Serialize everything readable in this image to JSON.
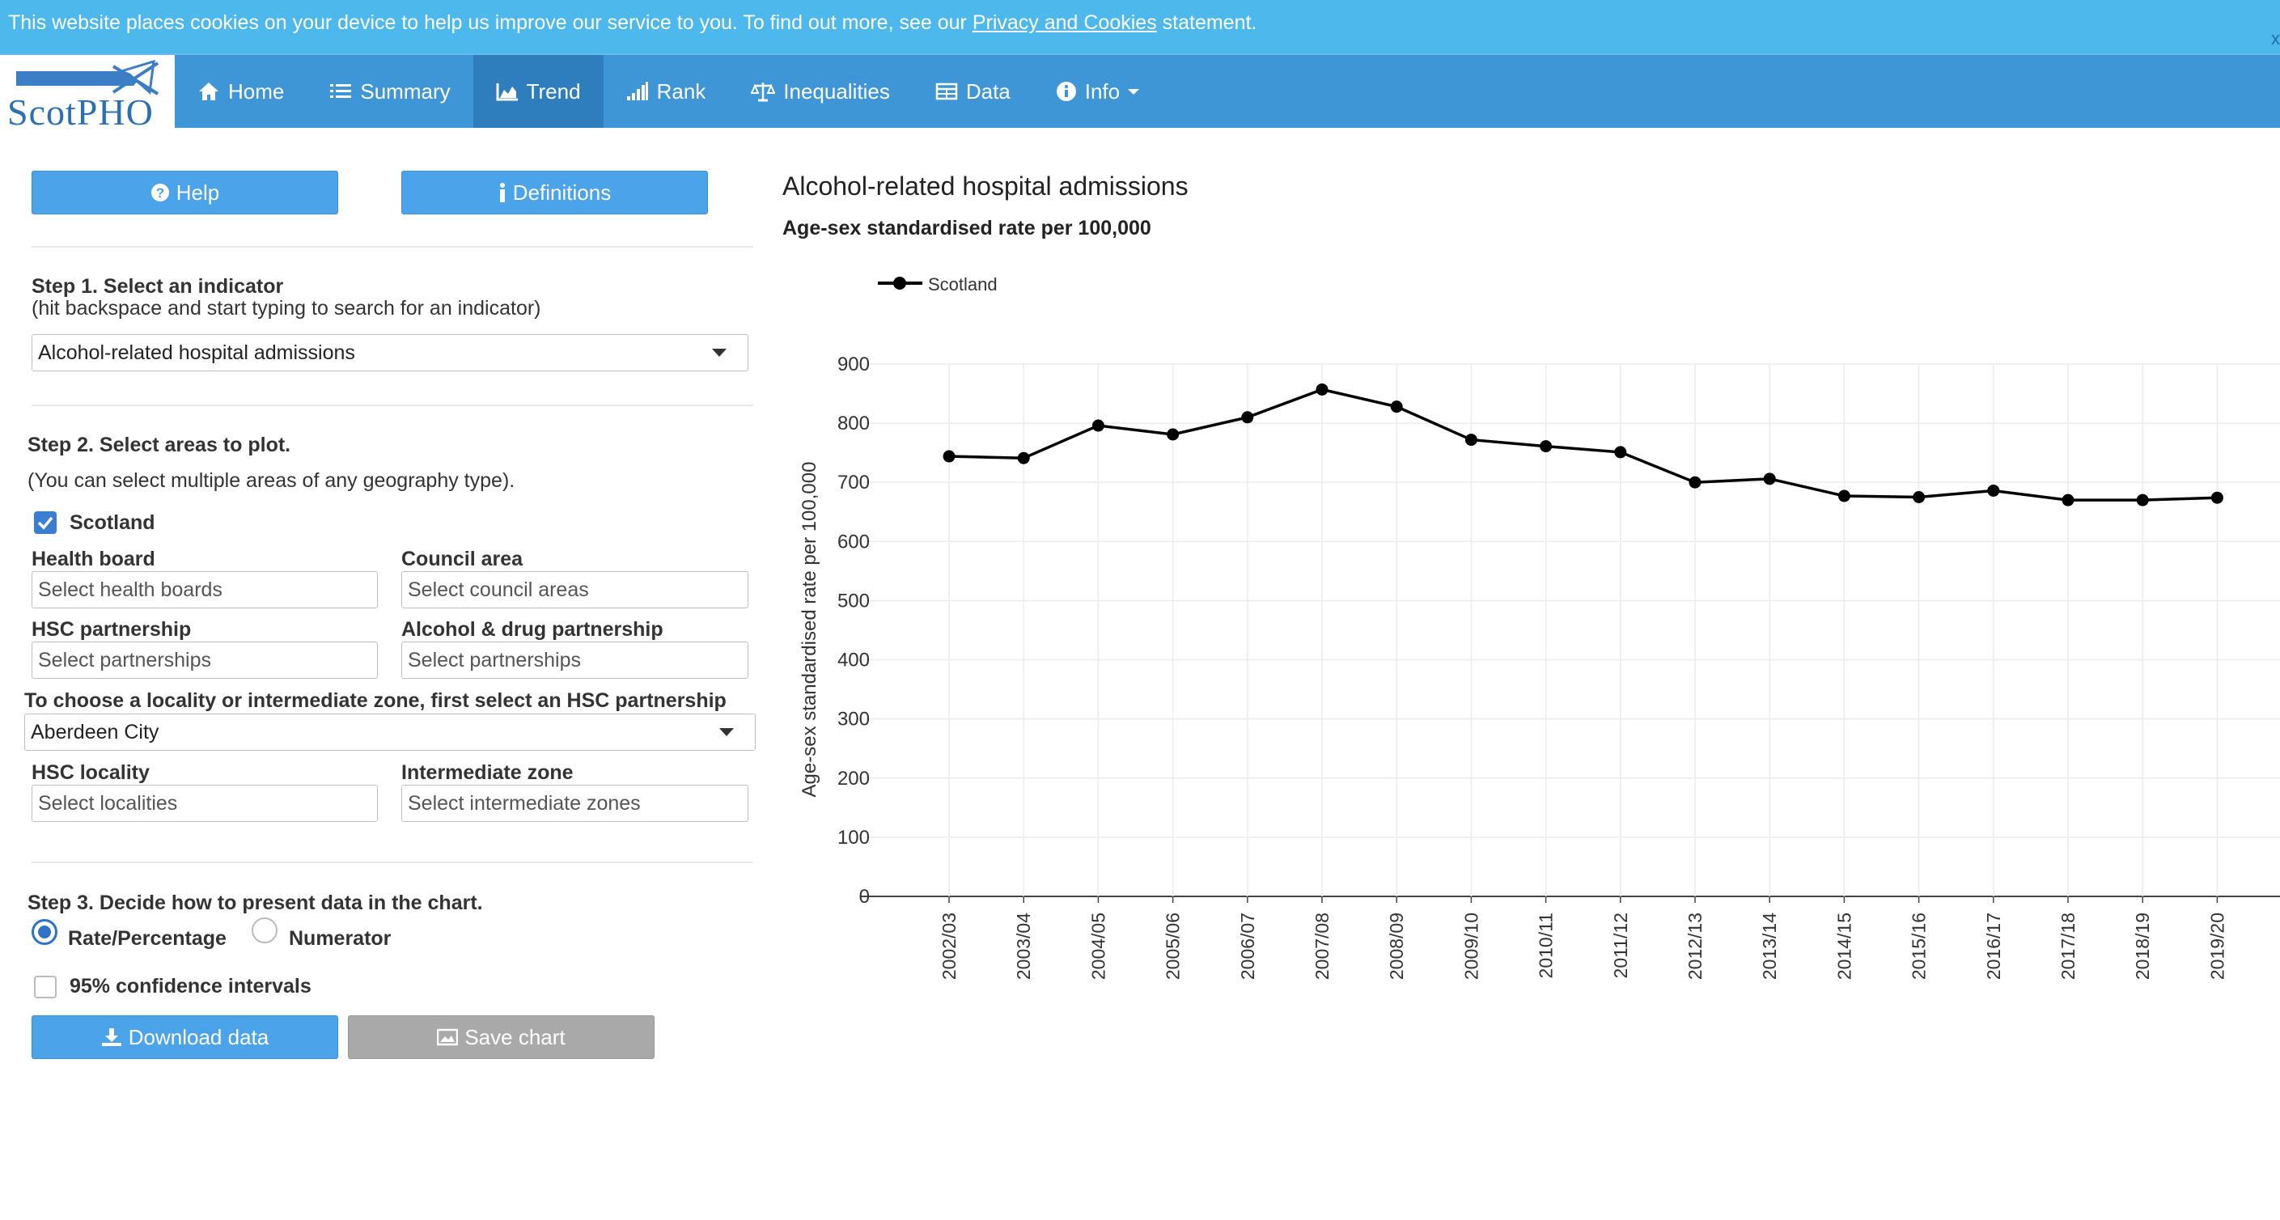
{
  "cookie": {
    "text_before": "This website places cookies on your device to help us improve our service to you. To find out more, see our ",
    "link": "Privacy and Cookies",
    "text_after": " statement.",
    "close": "x"
  },
  "navbar": {
    "logo": "ScotPHO",
    "items": [
      {
        "label": "Home",
        "icon": "home-icon"
      },
      {
        "label": "Summary",
        "icon": "list-icon"
      },
      {
        "label": "Trend",
        "icon": "area-chart-icon"
      },
      {
        "label": "Rank",
        "icon": "signal-icon"
      },
      {
        "label": "Inequalities",
        "icon": "balance-scale-icon"
      },
      {
        "label": "Data",
        "icon": "table-icon"
      },
      {
        "label": "Info",
        "icon": "info-circle-icon"
      }
    ],
    "active": "Trend"
  },
  "buttons": {
    "help": "Help",
    "definitions": "Definitions",
    "download": "Download data",
    "save": "Save chart"
  },
  "step1": {
    "title": "Step 1. Select an indicator",
    "hint": "(hit backspace and start typing to search for an indicator)",
    "selected": "Alcohol-related hospital admissions"
  },
  "step2": {
    "title": "Step 2. Select areas to plot.",
    "hint": "(You can select multiple areas of any geography type).",
    "scotland": "Scotland",
    "health_board": {
      "label": "Health board",
      "placeholder": "Select health boards"
    },
    "council_area": {
      "label": "Council area",
      "placeholder": "Select council areas"
    },
    "hsc_partnership": {
      "label": "HSC partnership",
      "placeholder": "Select partnerships"
    },
    "adp": {
      "label": "Alcohol & drug partnership",
      "placeholder": "Select partnerships"
    },
    "locality_prompt": "To choose a locality or intermediate zone, first select an HSC partnership",
    "locality_selected": "Aberdeen City",
    "hsc_locality": {
      "label": "HSC locality",
      "placeholder": "Select localities"
    },
    "intermediate_zone": {
      "label": "Intermediate zone",
      "placeholder": "Select intermediate zones"
    }
  },
  "step3": {
    "title": "Step 3. Decide how to present data in the chart.",
    "rate": "Rate/Percentage",
    "numerator": "Numerator",
    "ci": "95% confidence intervals"
  },
  "chart_data": {
    "type": "line",
    "title": "Alcohol-related hospital admissions",
    "subtitle": "Age-sex standardised rate per 100,000",
    "ylabel": "Age-sex standardised rate per 100,000",
    "xlabel": "",
    "ylim": [
      0,
      900
    ],
    "yticks": [
      0,
      100,
      200,
      300,
      400,
      500,
      600,
      700,
      800,
      900
    ],
    "grid": true,
    "legend": "top-left",
    "categories": [
      "2002/03",
      "2003/04",
      "2004/05",
      "2005/06",
      "2006/07",
      "2007/08",
      "2008/09",
      "2009/10",
      "2010/11",
      "2011/12",
      "2012/13",
      "2013/14",
      "2014/15",
      "2015/16",
      "2016/17",
      "2017/18",
      "2018/19",
      "2019/20"
    ],
    "series": [
      {
        "name": "Scotland",
        "color": "#000000",
        "values": [
          744,
          741,
          796,
          781,
          810,
          857,
          828,
          772,
          761,
          751,
          700,
          706,
          677,
          675,
          686,
          670,
          670,
          674
        ]
      }
    ]
  }
}
